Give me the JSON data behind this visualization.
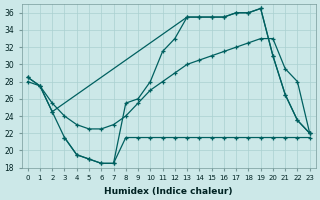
{
  "xlabel": "Humidex (Indice chaleur)",
  "xlim": [
    -0.5,
    23.5
  ],
  "ylim": [
    18,
    37
  ],
  "yticks": [
    18,
    20,
    22,
    24,
    26,
    28,
    30,
    32,
    34,
    36
  ],
  "xticks": [
    0,
    1,
    2,
    3,
    4,
    5,
    6,
    7,
    8,
    9,
    10,
    11,
    12,
    13,
    14,
    15,
    16,
    17,
    18,
    19,
    20,
    21,
    22,
    23
  ],
  "background_color": "#cce8e8",
  "grid_color": "#aad0d0",
  "line_color": "#006060",
  "line1_x": [
    0,
    1,
    2,
    13,
    14,
    15,
    16,
    17,
    18,
    19,
    20,
    21,
    22,
    23
  ],
  "line1_y": [
    28.5,
    27.5,
    24.5,
    35.5,
    35.5,
    35.5,
    35.5,
    36.0,
    36.0,
    36.5,
    31.0,
    26.5,
    23.5,
    22.0
  ],
  "line2_x": [
    0,
    1,
    2,
    3,
    4,
    5,
    6,
    7,
    8,
    9,
    10,
    11,
    12,
    13,
    14,
    15,
    16,
    17,
    18,
    19,
    20,
    21,
    22,
    23
  ],
  "line2_y": [
    28.0,
    27.5,
    25.5,
    24.0,
    23.0,
    22.5,
    22.5,
    23.0,
    24.0,
    25.5,
    27.0,
    28.0,
    29.0,
    30.0,
    30.5,
    31.0,
    31.5,
    32.0,
    32.5,
    33.0,
    33.0,
    29.5,
    28.0,
    22.0
  ],
  "line3_x": [
    0,
    1,
    2,
    3,
    4,
    5,
    6,
    7,
    8,
    9,
    10,
    11,
    12,
    13,
    14,
    15,
    16,
    17,
    18,
    19,
    20,
    21,
    22,
    23
  ],
  "line3_y": [
    28.5,
    27.5,
    24.5,
    21.5,
    19.5,
    19.0,
    18.5,
    18.5,
    25.5,
    26.0,
    28.0,
    31.5,
    33.0,
    35.5,
    35.5,
    35.5,
    35.5,
    36.0,
    36.0,
    36.5,
    31.0,
    26.5,
    23.5,
    22.0
  ],
  "line4_x": [
    3,
    4,
    5,
    6,
    7,
    8,
    9,
    10,
    11,
    12,
    13,
    14,
    15,
    16,
    17,
    18,
    19,
    20,
    21,
    22,
    23
  ],
  "line4_y": [
    21.5,
    19.5,
    19.0,
    18.5,
    18.5,
    21.5,
    21.5,
    21.5,
    21.5,
    21.5,
    21.5,
    21.5,
    21.5,
    21.5,
    21.5,
    21.5,
    21.5,
    21.5,
    21.5,
    21.5,
    21.5
  ]
}
